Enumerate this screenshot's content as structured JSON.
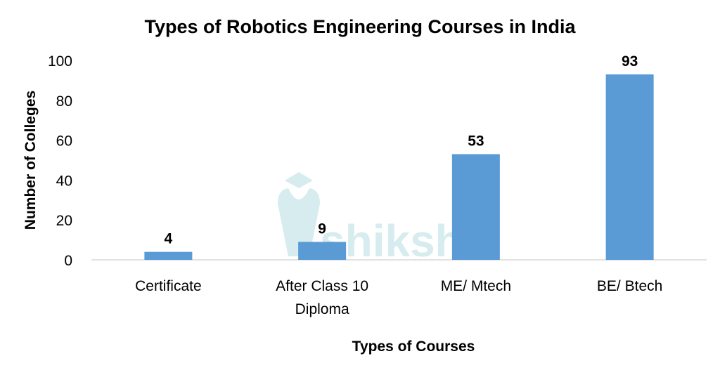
{
  "chart_data": {
    "type": "bar",
    "title": "Types of Robotics Engineering Courses in India",
    "xlabel": "Types of Courses",
    "ylabel": "Number of Colleges",
    "categories": [
      [
        "Certificate"
      ],
      [
        "After Class 10",
        "Diploma"
      ],
      [
        "ME/ Mtech"
      ],
      [
        "BE/ Btech"
      ]
    ],
    "values": [
      4,
      9,
      53,
      93
    ],
    "ylim": [
      0,
      100
    ],
    "yticks": [
      0,
      20,
      40,
      60,
      80,
      100
    ],
    "grid": false,
    "bar_color": "#5B9BD5",
    "watermark": "shiksha"
  }
}
